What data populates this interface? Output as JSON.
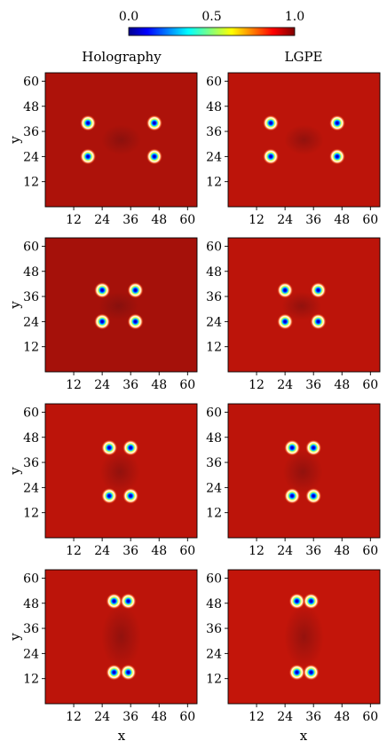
{
  "colorbar": {
    "ticks": [
      "0.0",
      "0.5",
      "1.0"
    ],
    "min": 0.0,
    "max": 1.0,
    "colormap": "jet",
    "colors": [
      "#00008f",
      "#0000ff",
      "#00ffff",
      "#ffff00",
      "#ff0000",
      "#800000"
    ]
  },
  "columns": [
    {
      "title": "Holography"
    },
    {
      "title": "LGPE"
    }
  ],
  "chart_data": {
    "type": "heatmap",
    "description_of_grid": "4 rows x 2 columns of 2D density maps",
    "xlabel": "x",
    "ylabel": "y",
    "xlim": [
      0,
      64
    ],
    "ylim": [
      0,
      64
    ],
    "x_ticks": [
      "12",
      "24",
      "36",
      "48",
      "60"
    ],
    "y_ticks": [
      "12",
      "24",
      "36",
      "48",
      "60"
    ],
    "value_range": [
      0.0,
      1.0
    ],
    "background_value": 0.92,
    "vortex_core_value": 0.0,
    "rows": [
      {
        "holography": {
          "vortices": [
            [
              18,
              40
            ],
            [
              46,
              40
            ],
            [
              18,
              24
            ],
            [
              46,
              24
            ]
          ],
          "background": 0.91
        },
        "lgpe": {
          "vortices": [
            [
              18,
              40
            ],
            [
              46,
              40
            ],
            [
              18,
              24
            ],
            [
              46,
              24
            ]
          ],
          "background": 0.93
        }
      },
      {
        "holography": {
          "vortices": [
            [
              24,
              39
            ],
            [
              38,
              39
            ],
            [
              24,
              24
            ],
            [
              38,
              24
            ]
          ],
          "background": 0.9
        },
        "lgpe": {
          "vortices": [
            [
              24,
              39
            ],
            [
              38,
              39
            ],
            [
              24,
              24
            ],
            [
              38,
              24
            ]
          ],
          "background": 0.93
        }
      },
      {
        "holography": {
          "vortices": [
            [
              27,
              43
            ],
            [
              36,
              43
            ],
            [
              27,
              20
            ],
            [
              36,
              20
            ]
          ],
          "background": 0.93
        },
        "lgpe": {
          "vortices": [
            [
              27,
              43
            ],
            [
              36,
              43
            ],
            [
              27,
              20
            ],
            [
              36,
              20
            ]
          ],
          "background": 0.93
        }
      },
      {
        "holography": {
          "vortices": [
            [
              29,
              49
            ],
            [
              35,
              49
            ],
            [
              29,
              15
            ],
            [
              35,
              15
            ]
          ],
          "background": 0.93
        },
        "lgpe": {
          "vortices": [
            [
              29,
              49
            ],
            [
              35,
              49
            ],
            [
              29,
              15
            ],
            [
              35,
              15
            ]
          ],
          "background": 0.94
        }
      }
    ]
  }
}
